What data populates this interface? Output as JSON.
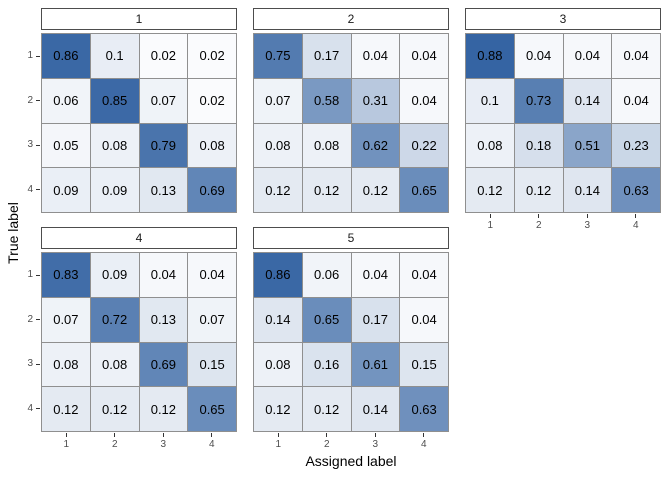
{
  "figure": {
    "x_axis_title": "Assigned label",
    "y_axis_title": "True label"
  },
  "theme": {
    "color_low": "#ffffff",
    "color_high": "#1a4f96",
    "cell_border_color": "#8f8f8f",
    "strip_border_color": "#4d4d4d",
    "strip_bg_color": "#ffffff",
    "tick_mark_color": "#333333",
    "tick_label_color": "#4d4d4d",
    "cell_text_color": "#000000",
    "background_color": "#ffffff"
  },
  "chart_data": {
    "type": "heatmap",
    "title": "",
    "xlabel": "Assigned label",
    "ylabel": "True label",
    "x_tick_labels": [
      "1",
      "2",
      "3",
      "4"
    ],
    "y_tick_labels": [
      "1",
      "2",
      "3",
      "4"
    ],
    "value_range": [
      0,
      1
    ],
    "legend": "none",
    "grid": "off",
    "facets": [
      {
        "label": "1",
        "matrix": [
          [
            0.86,
            0.1,
            0.02,
            0.02
          ],
          [
            0.06,
            0.85,
            0.07,
            0.02
          ],
          [
            0.05,
            0.08,
            0.79,
            0.08
          ],
          [
            0.09,
            0.09,
            0.13,
            0.69
          ]
        ]
      },
      {
        "label": "2",
        "matrix": [
          [
            0.75,
            0.17,
            0.04,
            0.04
          ],
          [
            0.07,
            0.58,
            0.31,
            0.04
          ],
          [
            0.08,
            0.08,
            0.62,
            0.22
          ],
          [
            0.12,
            0.12,
            0.12,
            0.65
          ]
        ]
      },
      {
        "label": "3",
        "matrix": [
          [
            0.88,
            0.04,
            0.04,
            0.04
          ],
          [
            0.1,
            0.73,
            0.14,
            0.04
          ],
          [
            0.08,
            0.18,
            0.51,
            0.23
          ],
          [
            0.12,
            0.12,
            0.14,
            0.63
          ]
        ]
      },
      {
        "label": "4",
        "matrix": [
          [
            0.83,
            0.09,
            0.04,
            0.04
          ],
          [
            0.07,
            0.72,
            0.13,
            0.07
          ],
          [
            0.08,
            0.08,
            0.69,
            0.15
          ],
          [
            0.12,
            0.12,
            0.12,
            0.65
          ]
        ]
      },
      {
        "label": "5",
        "matrix": [
          [
            0.86,
            0.06,
            0.04,
            0.04
          ],
          [
            0.14,
            0.65,
            0.17,
            0.04
          ],
          [
            0.08,
            0.16,
            0.61,
            0.15
          ],
          [
            0.12,
            0.12,
            0.14,
            0.63
          ]
        ]
      }
    ]
  }
}
